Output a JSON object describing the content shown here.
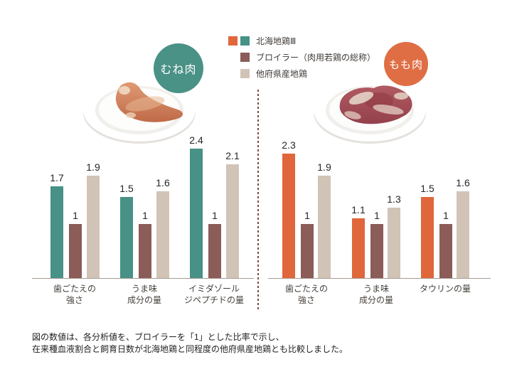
{
  "colors": {
    "hokkai_teal": "#479186",
    "hokkai_orange": "#E0673C",
    "broiler_brown": "#8B5C58",
    "other_beige": "#D1C4B6",
    "axis": "#A79D94",
    "divider": "#7B4A42",
    "badge_mune": "#4A9186",
    "badge_momo": "#DF6E44"
  },
  "legend": {
    "items": [
      {
        "label": "北海地鶏Ⅲ",
        "swatches": [
          "#E0673C",
          "#479186"
        ]
      },
      {
        "label": "ブロイラー（肉用若鶏の総称）",
        "swatches": [
          "#8B5C58"
        ]
      },
      {
        "label": "他府県産地鶏",
        "swatches": [
          "#D1C4B6"
        ]
      }
    ]
  },
  "badges": {
    "mune": "むね肉",
    "momo": "もも肉"
  },
  "chart_data": [
    {
      "type": "bar",
      "section": "むね肉",
      "categories": [
        "歯ごたえの強さ",
        "うま味成分の量",
        "イミダゾールジペプチドの量"
      ],
      "categories_lines": [
        [
          "歯ごたえの",
          "強さ"
        ],
        [
          "うま味",
          "成分の量"
        ],
        [
          "イミダゾール",
          "ジペプチドの量"
        ]
      ],
      "series": [
        {
          "name": "北海地鶏Ⅲ",
          "color": "#479186",
          "values": [
            1.7,
            1.5,
            2.4
          ]
        },
        {
          "name": "ブロイラー（肉用若鶏の総称）",
          "color": "#8B5C58",
          "values": [
            1,
            1,
            1
          ]
        },
        {
          "name": "他府県産地鶏",
          "color": "#D1C4B6",
          "values": [
            1.9,
            1.6,
            2.1
          ]
        }
      ],
      "ylim": [
        0,
        2.6
      ],
      "legend_position": "top-center",
      "grid": false
    },
    {
      "type": "bar",
      "section": "もも肉",
      "categories": [
        "歯ごたえの強さ",
        "うま味成分の量",
        "タウリンの量"
      ],
      "categories_lines": [
        [
          "歯ごたえの",
          "強さ"
        ],
        [
          "うま味",
          "成分の量"
        ],
        [
          "タウリンの量"
        ]
      ],
      "series": [
        {
          "name": "北海地鶏Ⅲ",
          "color": "#E0673C",
          "values": [
            2.3,
            1.1,
            1.5
          ]
        },
        {
          "name": "ブロイラー（肉用若鶏の総称）",
          "color": "#8B5C58",
          "values": [
            1,
            1,
            1
          ]
        },
        {
          "name": "他府県産地鶏",
          "color": "#D1C4B6",
          "values": [
            1.9,
            1.3,
            1.6
          ]
        }
      ],
      "ylim": [
        0,
        2.6
      ],
      "legend_position": "top-center",
      "grid": false
    }
  ],
  "footnote": {
    "line1": "図の数値は、各分析値を、ブロイラーを「1」とした比率で示し、",
    "line2": "在来種血液割合と飼育日数が北海地鶏と同程度の他府県産地鶏とも比較しました。"
  }
}
